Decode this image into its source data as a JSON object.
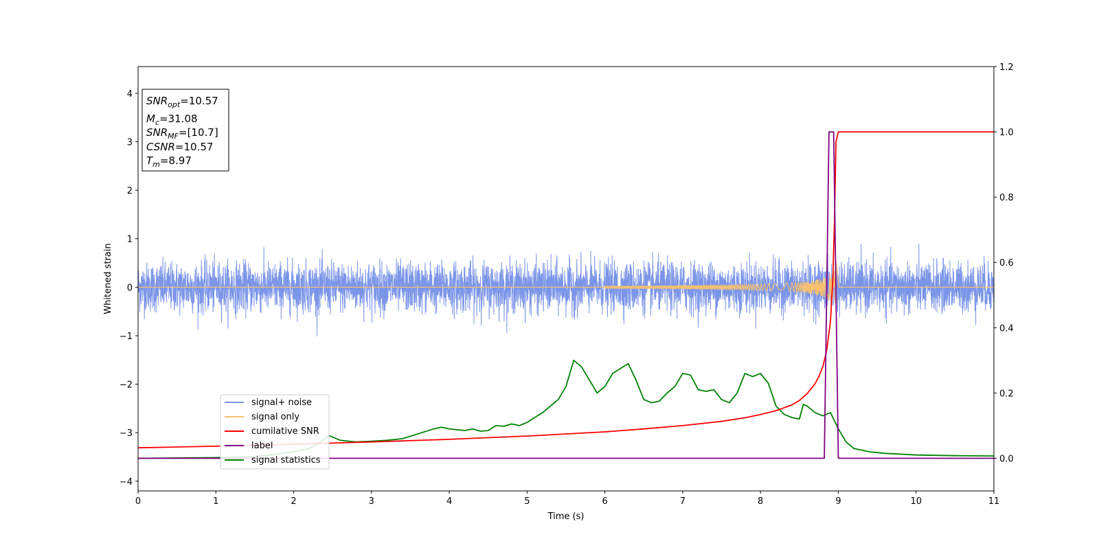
{
  "chart_data": {
    "type": "line",
    "xlabel": "Time (s)",
    "ylabel_left": "Whitened strain",
    "xlim": [
      0,
      11
    ],
    "ylim_left": [
      -4.2,
      4.55
    ],
    "ylim_right": [
      -0.1,
      1.2
    ],
    "xticks": [
      "0",
      "1",
      "2",
      "3",
      "4",
      "5",
      "6",
      "7",
      "8",
      "9",
      "10",
      "11"
    ],
    "yticks_left": [
      "−4",
      "−3",
      "−2",
      "−1",
      "0",
      "1",
      "2",
      "3",
      "4"
    ],
    "yticks_right": [
      "0.0",
      "0.2",
      "0.4",
      "0.6",
      "0.8",
      "1.0",
      "1.2"
    ],
    "grid": false,
    "legend_position": "lower-left",
    "annotation": {
      "snr_opt": "=10.57",
      "mc": "=31.08",
      "snr_mf": "=[10.7]",
      "csnr": "=10.57",
      "tm": "=8.97"
    },
    "series": [
      {
        "name": "signal+ noise",
        "axis": "left",
        "color": "#7b95e8",
        "description_values": {
          "amplitude_typical": 0.6,
          "amplitude_max": 1.25,
          "chirp_peak_time": 8.97
        }
      },
      {
        "name": "signal only",
        "axis": "left",
        "color": "#f5c070",
        "chirp": {
          "start": 6.0,
          "merger": 8.97,
          "peak_amplitude": 0.55
        }
      },
      {
        "name": "cumilative SNR",
        "axis": "right",
        "color": "#ff0000",
        "x": [
          0,
          1,
          2,
          3,
          4,
          5,
          6,
          6.5,
          7,
          7.5,
          7.8,
          8.0,
          8.2,
          8.4,
          8.5,
          8.6,
          8.7,
          8.75,
          8.8,
          8.85,
          8.9,
          8.93,
          8.95,
          8.97,
          9.0,
          11
        ],
        "y": [
          0.032,
          0.037,
          0.043,
          0.05,
          0.058,
          0.068,
          0.081,
          0.09,
          0.1,
          0.113,
          0.124,
          0.134,
          0.146,
          0.163,
          0.177,
          0.198,
          0.228,
          0.25,
          0.28,
          0.33,
          0.42,
          0.55,
          0.72,
          0.97,
          1.0,
          1.0
        ]
      },
      {
        "name": "label",
        "axis": "right",
        "color": "#800080",
        "x": [
          0,
          8.82,
          8.88,
          8.94,
          9.0,
          11
        ],
        "y": [
          0,
          0,
          1,
          1,
          0,
          0
        ]
      },
      {
        "name": "signal statistics",
        "axis": "right",
        "color": "#008000",
        "x": [
          0,
          0.5,
          1.0,
          1.5,
          1.7,
          2.0,
          2.2,
          2.35,
          2.45,
          2.6,
          2.8,
          3.0,
          3.2,
          3.4,
          3.6,
          3.8,
          3.9,
          4.0,
          4.2,
          4.3,
          4.4,
          4.5,
          4.6,
          4.7,
          4.8,
          4.9,
          5.0,
          5.1,
          5.2,
          5.3,
          5.4,
          5.5,
          5.6,
          5.7,
          5.8,
          5.9,
          6.0,
          6.1,
          6.2,
          6.3,
          6.4,
          6.5,
          6.6,
          6.7,
          6.8,
          6.9,
          7.0,
          7.1,
          7.2,
          7.3,
          7.4,
          7.5,
          7.6,
          7.7,
          7.8,
          7.9,
          8.0,
          8.1,
          8.2,
          8.3,
          8.4,
          8.5,
          8.55,
          8.6,
          8.7,
          8.8,
          8.9,
          9.0,
          9.1,
          9.2,
          9.4,
          9.6,
          10.0,
          10.5,
          11.0
        ],
        "y": [
          0.0,
          0.001,
          0.002,
          0.005,
          0.01,
          0.02,
          0.03,
          0.05,
          0.07,
          0.055,
          0.05,
          0.052,
          0.055,
          0.06,
          0.075,
          0.09,
          0.095,
          0.09,
          0.085,
          0.09,
          0.083,
          0.085,
          0.1,
          0.098,
          0.105,
          0.1,
          0.11,
          0.125,
          0.14,
          0.16,
          0.18,
          0.22,
          0.3,
          0.28,
          0.24,
          0.2,
          0.22,
          0.26,
          0.275,
          0.29,
          0.24,
          0.18,
          0.17,
          0.175,
          0.2,
          0.22,
          0.26,
          0.255,
          0.21,
          0.205,
          0.21,
          0.18,
          0.17,
          0.2,
          0.26,
          0.25,
          0.26,
          0.23,
          0.16,
          0.135,
          0.125,
          0.12,
          0.165,
          0.16,
          0.14,
          0.13,
          0.14,
          0.09,
          0.05,
          0.03,
          0.02,
          0.015,
          0.01,
          0.008,
          0.007
        ]
      }
    ]
  }
}
